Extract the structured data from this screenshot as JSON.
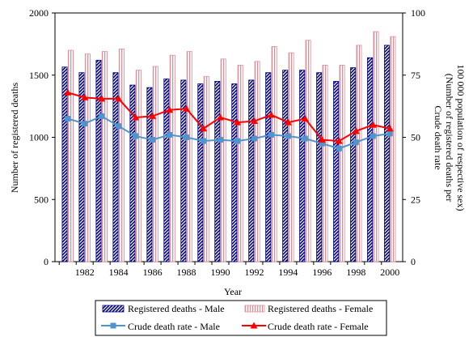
{
  "chart_data": {
    "type": "bar",
    "x": [
      1981,
      1982,
      1983,
      1984,
      1985,
      1986,
      1987,
      1988,
      1989,
      1990,
      1991,
      1992,
      1993,
      1994,
      1995,
      1996,
      1997,
      1998,
      1999,
      2000
    ],
    "x_tick_labels": [
      "1982",
      "1984",
      "1986",
      "1988",
      "1990",
      "1992",
      "1994",
      "1996",
      "1998",
      "2000"
    ],
    "xlabel": "Year",
    "ylabel_left": "Number of registered deaths",
    "ylabel_right_lines": [
      "Crude death rate",
      "(Number of registered deaths per",
      "100 000 population of respective sex)"
    ],
    "ylim_left": [
      0,
      2000
    ],
    "ylim_right": [
      0,
      100
    ],
    "yticks_left": [
      0,
      500,
      1000,
      1500,
      2000
    ],
    "yticks_right": [
      0,
      25,
      50,
      75,
      100
    ],
    "grid": false,
    "legend_position": "bottom",
    "series": [
      {
        "name": "Registered deaths - Male",
        "kind": "bar",
        "axis": "left",
        "pattern": "diagonal-stripe",
        "color": "#000080",
        "values": [
          1565,
          1520,
          1620,
          1520,
          1420,
          1400,
          1470,
          1460,
          1430,
          1450,
          1430,
          1460,
          1520,
          1540,
          1540,
          1520,
          1450,
          1560,
          1640,
          1740
        ]
      },
      {
        "name": "Registered deaths - Female",
        "kind": "bar",
        "axis": "left",
        "pattern": "pink-vertical-stripe",
        "color": "#e8a0a8",
        "values": [
          1700,
          1670,
          1690,
          1710,
          1540,
          1570,
          1660,
          1690,
          1490,
          1630,
          1580,
          1610,
          1730,
          1680,
          1780,
          1580,
          1580,
          1740,
          1850,
          1810
        ]
      },
      {
        "name": "Crude death rate - Male",
        "kind": "line",
        "axis": "right",
        "marker": "square",
        "color": "#4f94cd",
        "values": [
          57.5,
          55.5,
          58.5,
          54.5,
          50.5,
          49.0,
          51.0,
          50.0,
          48.5,
          49.0,
          48.5,
          49.5,
          51.0,
          50.5,
          49.5,
          47.5,
          45.5,
          48.0,
          50.5,
          51.5
        ]
      },
      {
        "name": "Crude death rate - Female",
        "kind": "line",
        "axis": "right",
        "marker": "triangle",
        "color": "#ff0000",
        "values": [
          68.0,
          66.0,
          65.5,
          65.5,
          58.0,
          58.5,
          61.0,
          61.5,
          53.5,
          58.0,
          56.0,
          56.5,
          59.0,
          56.0,
          57.5,
          49.0,
          48.5,
          52.5,
          55.0,
          53.5
        ]
      }
    ]
  }
}
